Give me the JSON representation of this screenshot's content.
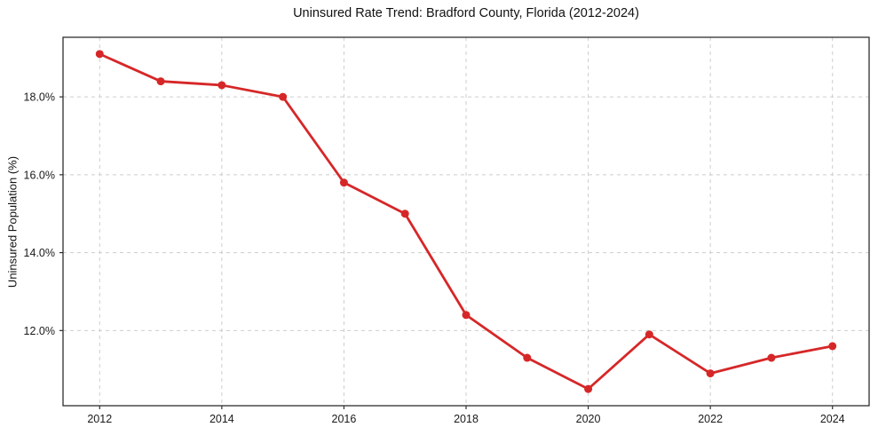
{
  "chart_data": {
    "type": "line",
    "title": "Uninsured Rate Trend: Bradford County, Florida (2012-2024)",
    "xlabel": "",
    "ylabel": "Uninsured Population (%)",
    "x": [
      2012,
      2013,
      2014,
      2015,
      2016,
      2017,
      2018,
      2019,
      2020,
      2021,
      2022,
      2023,
      2024
    ],
    "values": [
      19.1,
      18.4,
      18.3,
      18.0,
      15.8,
      15.0,
      12.4,
      11.3,
      10.5,
      11.9,
      10.9,
      11.3,
      11.6
    ],
    "x_ticks": [
      2012,
      2014,
      2016,
      2018,
      2020,
      2022,
      2024
    ],
    "y_ticks": [
      12.0,
      14.0,
      16.0,
      18.0
    ],
    "y_tick_suffix": "%",
    "xlim": [
      2011.4,
      2024.6
    ],
    "ylim": [
      10.07,
      19.53
    ],
    "grid": true,
    "legend": false,
    "line_color": "#d62728",
    "marker": "circle",
    "background": "#ffffff"
  }
}
